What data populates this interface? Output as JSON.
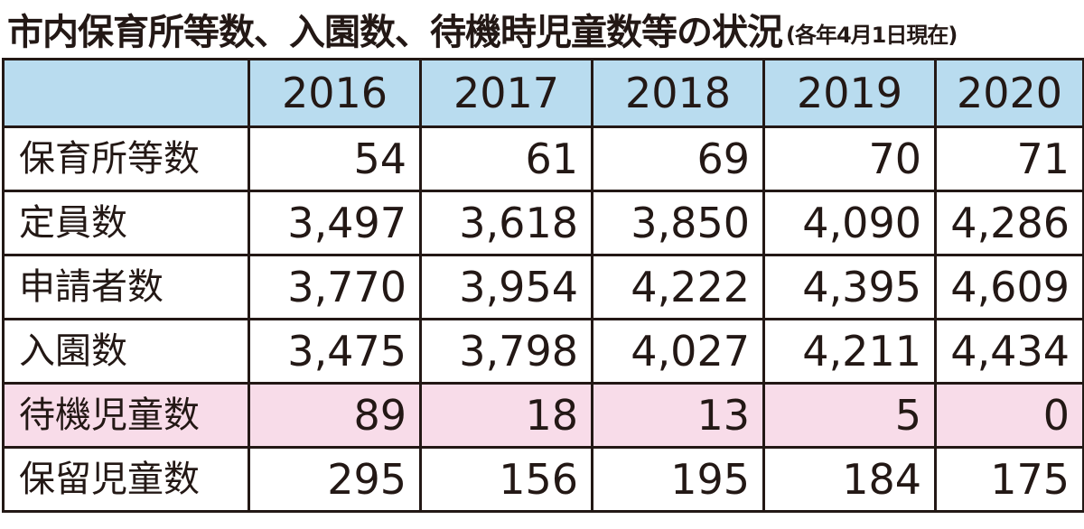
{
  "title": {
    "main": "市内保育所等数、入園数、待機時児童数等の状況",
    "note": "(各年4月1日現在)"
  },
  "table": {
    "header_blank": "",
    "years": [
      "2016",
      "2017",
      "2018",
      "2019",
      "2020"
    ],
    "rows": [
      {
        "label": "保育所等数",
        "values": [
          "54",
          "61",
          "69",
          "70",
          "71"
        ]
      },
      {
        "label": "定員数",
        "values": [
          "3,497",
          "3,618",
          "3,850",
          "4,090",
          "4,286"
        ]
      },
      {
        "label": "申請者数",
        "values": [
          "3,770",
          "3,954",
          "4,222",
          "4,395",
          "4,609"
        ]
      },
      {
        "label": "入園数",
        "values": [
          "3,475",
          "3,798",
          "4,027",
          "4,211",
          "4,434"
        ]
      },
      {
        "label": "待機児童数",
        "values": [
          "89",
          "18",
          "13",
          "5",
          "0"
        ]
      },
      {
        "label": "保留児童数",
        "values": [
          "295",
          "156",
          "195",
          "184",
          "175"
        ]
      }
    ]
  },
  "colors": {
    "header_bg": "#b9dcef",
    "highlight_bg": "#f8dce9",
    "text": "#231815"
  }
}
